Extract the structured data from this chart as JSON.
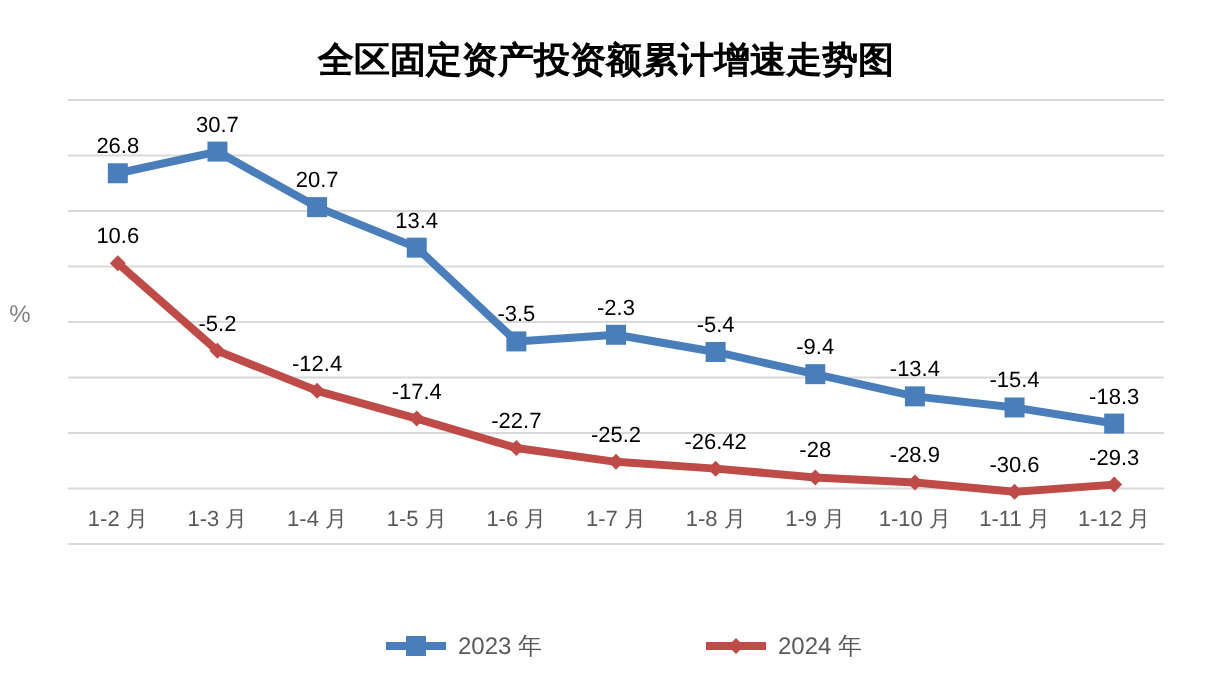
{
  "chart_data": {
    "type": "line",
    "title": "全区固定资产投资额累计增速走势图",
    "ylabel": "%",
    "categories": [
      "1-2 月",
      "1-3 月",
      "1-4 月",
      "1-5 月",
      "1-6 月",
      "1-7 月",
      "1-8 月",
      "1-9 月",
      "1-10 月",
      "1-11 月",
      "1-12 月"
    ],
    "series": [
      {
        "name": "2023 年",
        "color": "#4a7ebb",
        "marker": "square",
        "values": [
          26.8,
          30.7,
          20.7,
          13.4,
          -3.5,
          -2.3,
          -5.4,
          -9.4,
          -13.4,
          -15.4,
          -18.3
        ]
      },
      {
        "name": "2024 年",
        "color": "#be4b48",
        "marker": "diamond",
        "values": [
          10.6,
          -5.2,
          -12.4,
          -17.4,
          -22.7,
          -25.2,
          -26.42,
          -28,
          -28.9,
          -30.6,
          -29.3
        ]
      }
    ],
    "ylim": [
      -40,
      40
    ],
    "yticks": [
      {
        "value": -40,
        "label": null
      },
      {
        "value": -30,
        "label": null
      },
      {
        "value": -20,
        "label": null
      },
      {
        "value": -10,
        "label": null
      },
      {
        "value": 0,
        "label": null
      },
      {
        "value": 10,
        "label": null
      },
      {
        "value": 20,
        "label": null
      },
      {
        "value": 30,
        "label": null
      },
      {
        "value": 40,
        "label": null
      }
    ],
    "grid": "y",
    "legend": "bottom",
    "data_labels": true
  }
}
